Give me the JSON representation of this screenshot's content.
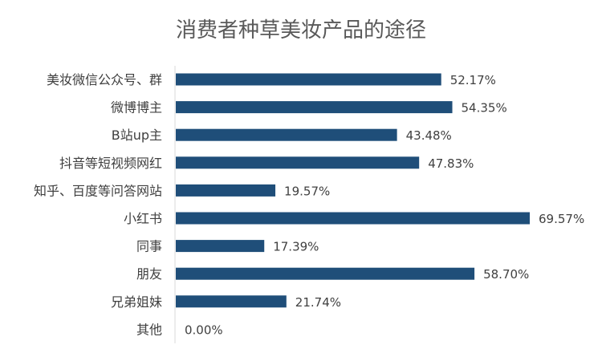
{
  "chart_data": {
    "type": "bar",
    "orientation": "horizontal",
    "title": "消费者种草美妆产品的途径",
    "xlabel": "",
    "ylabel": "",
    "xlim": [
      0,
      75
    ],
    "grid": false,
    "legend": "none",
    "bar_color": "#1f4e79",
    "categories": [
      "美妆微信公众号、群",
      "微博博主",
      "B站up主",
      "抖音等短视频网红",
      "知乎、百度等问答网站",
      "小红书",
      "同事",
      "朋友",
      "兄弟姐妹",
      "其他"
    ],
    "values": [
      52.17,
      54.35,
      43.48,
      47.83,
      19.57,
      69.57,
      17.39,
      58.7,
      21.74,
      0.0
    ],
    "data_labels": [
      "52.17%",
      "54.35%",
      "43.48%",
      "47.83%",
      "19.57%",
      "69.57%",
      "17.39%",
      "58.70%",
      "21.74%",
      "0.00%"
    ]
  }
}
